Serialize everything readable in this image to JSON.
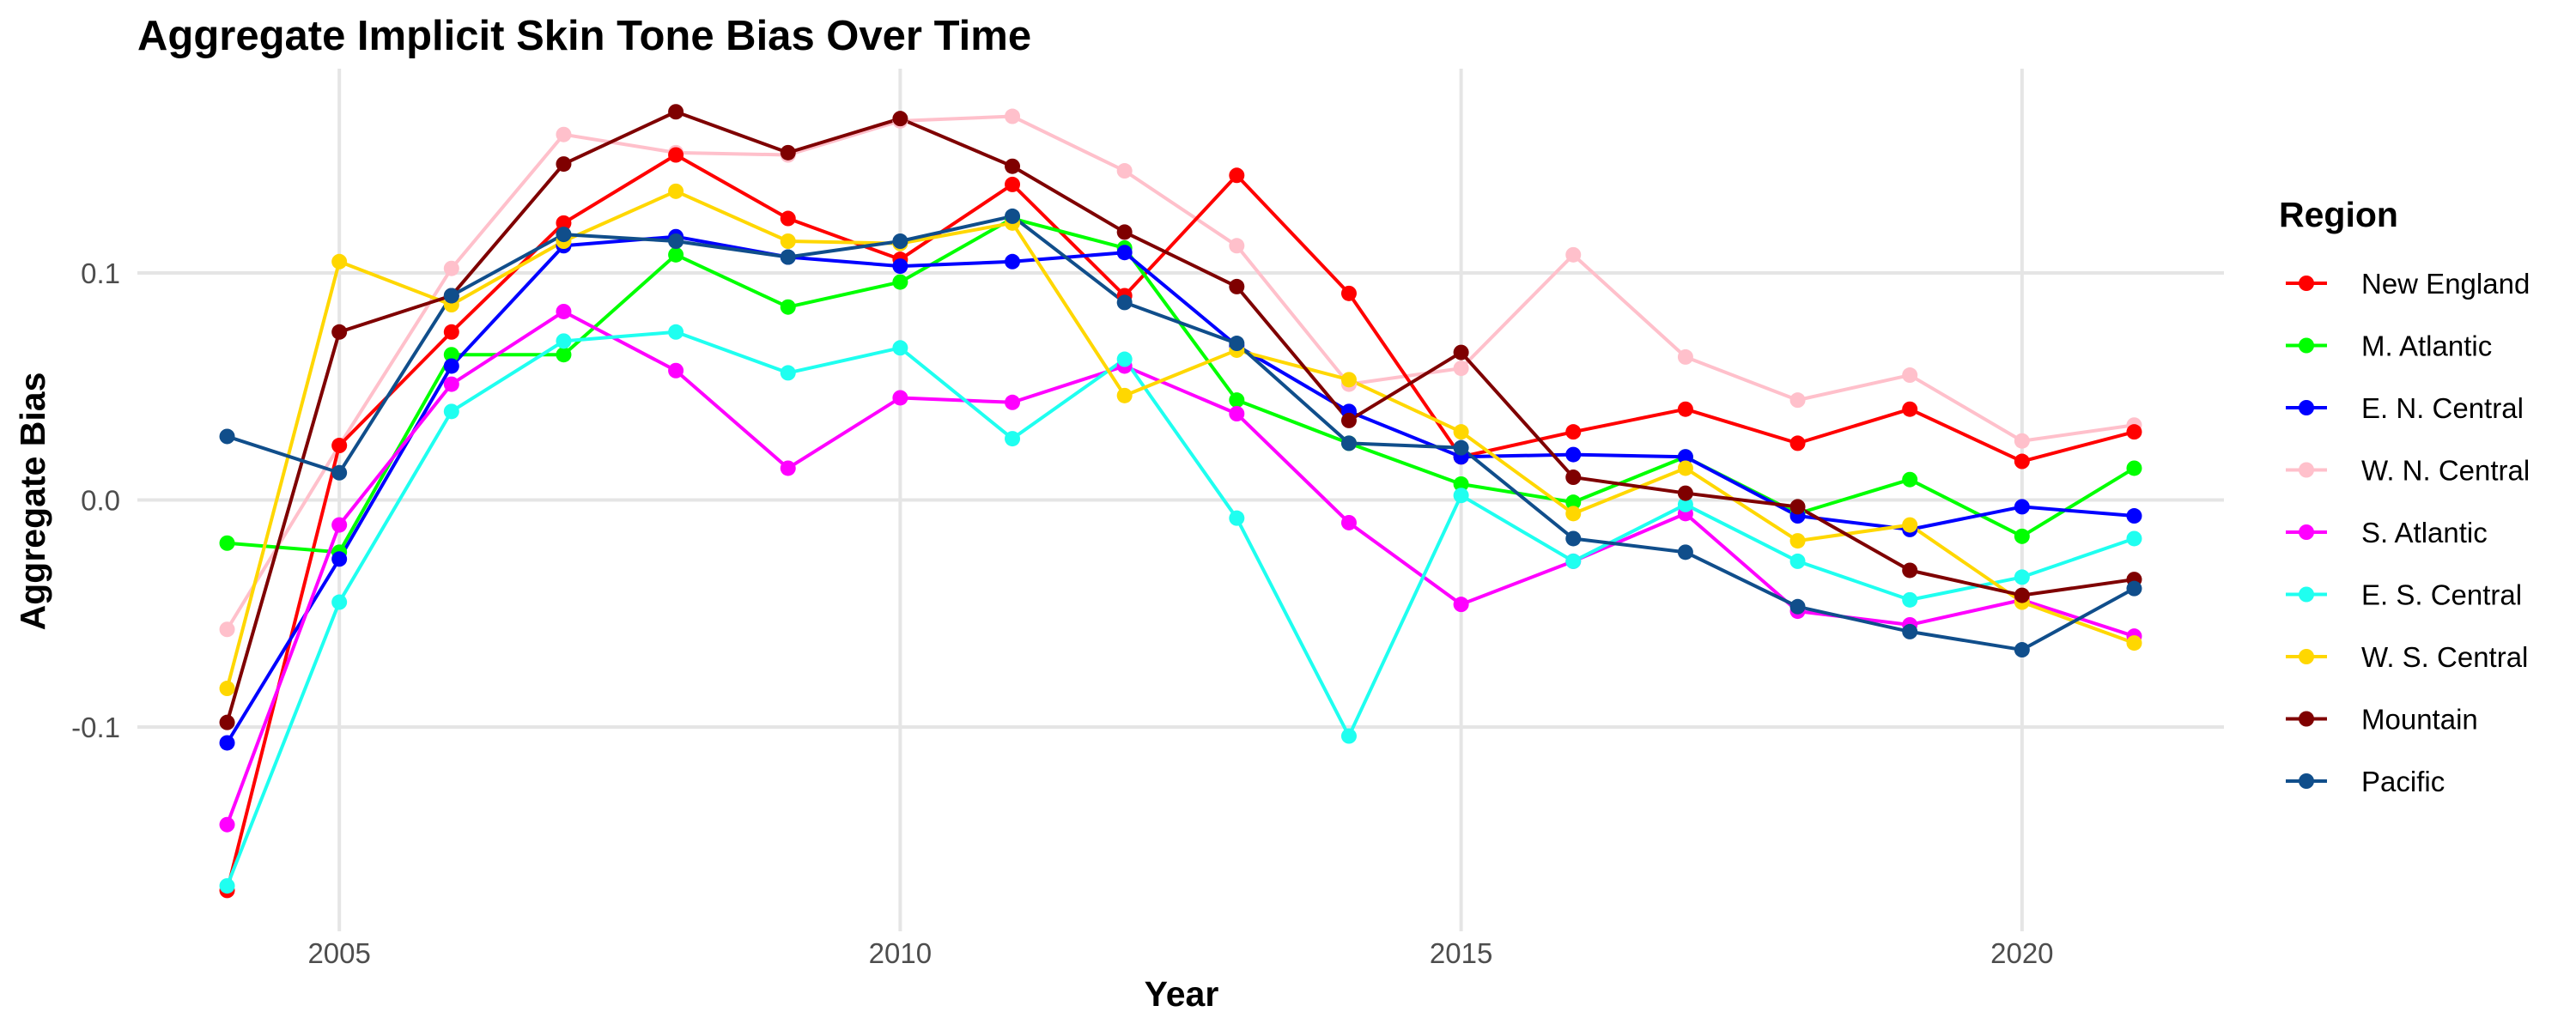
{
  "chart_data": {
    "type": "line",
    "title": "Aggregate Implicit Skin Tone Bias Over Time",
    "xlabel": "Year",
    "ylabel": "Aggregate Bias",
    "xlim": [
      2003.2,
      2021.8
    ],
    "ylim": [
      -0.19,
      0.19
    ],
    "x_ticks": [
      2005,
      2010,
      2015,
      2020
    ],
    "y_ticks": [
      -0.1,
      0.0,
      0.1
    ],
    "y_tick_labels": [
      "-0.1",
      "0.0",
      "0.1"
    ],
    "grid": true,
    "legend_title": "Region",
    "legend_position": "right",
    "x": [
      2004,
      2005,
      2006,
      2007,
      2008,
      2009,
      2010,
      2011,
      2012,
      2013,
      2014,
      2015,
      2016,
      2017,
      2018,
      2019,
      2020,
      2021
    ],
    "series": [
      {
        "name": "W. N. Central",
        "color": "#ffc0cb",
        "values": [
          -0.057,
          0.024,
          0.102,
          0.161,
          0.153,
          0.152,
          0.167,
          0.169,
          0.145,
          0.112,
          0.051,
          0.058,
          0.108,
          0.063,
          0.044,
          0.055,
          0.026,
          0.033
        ]
      },
      {
        "name": "New England",
        "color": "#ff0000",
        "values": [
          -0.172,
          0.024,
          0.074,
          0.122,
          0.152,
          0.124,
          0.106,
          0.139,
          0.09,
          0.143,
          0.091,
          0.019,
          0.03,
          0.04,
          0.025,
          0.04,
          0.017,
          0.03
        ]
      },
      {
        "name": "M. Atlantic",
        "color": "#00ff00",
        "values": [
          -0.019,
          -0.023,
          0.064,
          0.064,
          0.108,
          0.085,
          0.096,
          0.124,
          0.111,
          0.044,
          0.025,
          0.007,
          -0.001,
          0.019,
          -0.006,
          0.009,
          -0.016,
          0.014
        ]
      },
      {
        "name": "E. N. Central",
        "color": "#0000ff",
        "values": [
          -0.107,
          -0.026,
          0.059,
          0.112,
          0.116,
          0.107,
          0.103,
          0.105,
          0.109,
          0.068,
          0.039,
          0.019,
          0.02,
          0.019,
          -0.007,
          -0.013,
          -0.003,
          -0.007
        ]
      },
      {
        "name": "S. Atlantic",
        "color": "#ff00ff",
        "values": [
          -0.143,
          -0.011,
          0.051,
          0.083,
          0.057,
          0.014,
          0.045,
          0.043,
          0.059,
          0.038,
          -0.01,
          -0.046,
          -0.027,
          -0.006,
          -0.049,
          -0.055,
          -0.044,
          -0.06
        ]
      },
      {
        "name": "E. S. Central",
        "color": "#1ffff0",
        "values": [
          -0.17,
          -0.045,
          0.039,
          0.07,
          0.074,
          0.056,
          0.067,
          0.027,
          0.062,
          -0.008,
          -0.104,
          0.002,
          -0.027,
          -0.002,
          -0.027,
          -0.044,
          -0.034,
          -0.017
        ]
      },
      {
        "name": "W. S. Central",
        "color": "#ffd700",
        "values": [
          -0.083,
          0.105,
          0.086,
          0.114,
          0.136,
          0.114,
          0.113,
          0.122,
          0.046,
          0.066,
          0.053,
          0.03,
          -0.006,
          0.014,
          -0.018,
          -0.011,
          -0.045,
          -0.063
        ]
      },
      {
        "name": "Mountain",
        "color": "#7f0000",
        "values": [
          -0.098,
          0.074,
          0.09,
          0.148,
          0.171,
          0.153,
          0.168,
          0.147,
          0.118,
          0.094,
          0.035,
          0.065,
          0.01,
          0.003,
          -0.003,
          -0.031,
          -0.042,
          -0.035
        ]
      },
      {
        "name": "Pacific",
        "color": "#104e8b",
        "values": [
          0.028,
          0.012,
          0.09,
          0.117,
          0.114,
          0.107,
          0.114,
          0.125,
          0.087,
          0.069,
          0.025,
          0.023,
          -0.017,
          -0.023,
          -0.047,
          -0.058,
          -0.066,
          -0.039
        ]
      }
    ],
    "legend_order": [
      "New England",
      "M. Atlantic",
      "E. N. Central",
      "W. N. Central",
      "S. Atlantic",
      "E. S. Central",
      "W. S. Central",
      "Mountain",
      "Pacific"
    ]
  }
}
